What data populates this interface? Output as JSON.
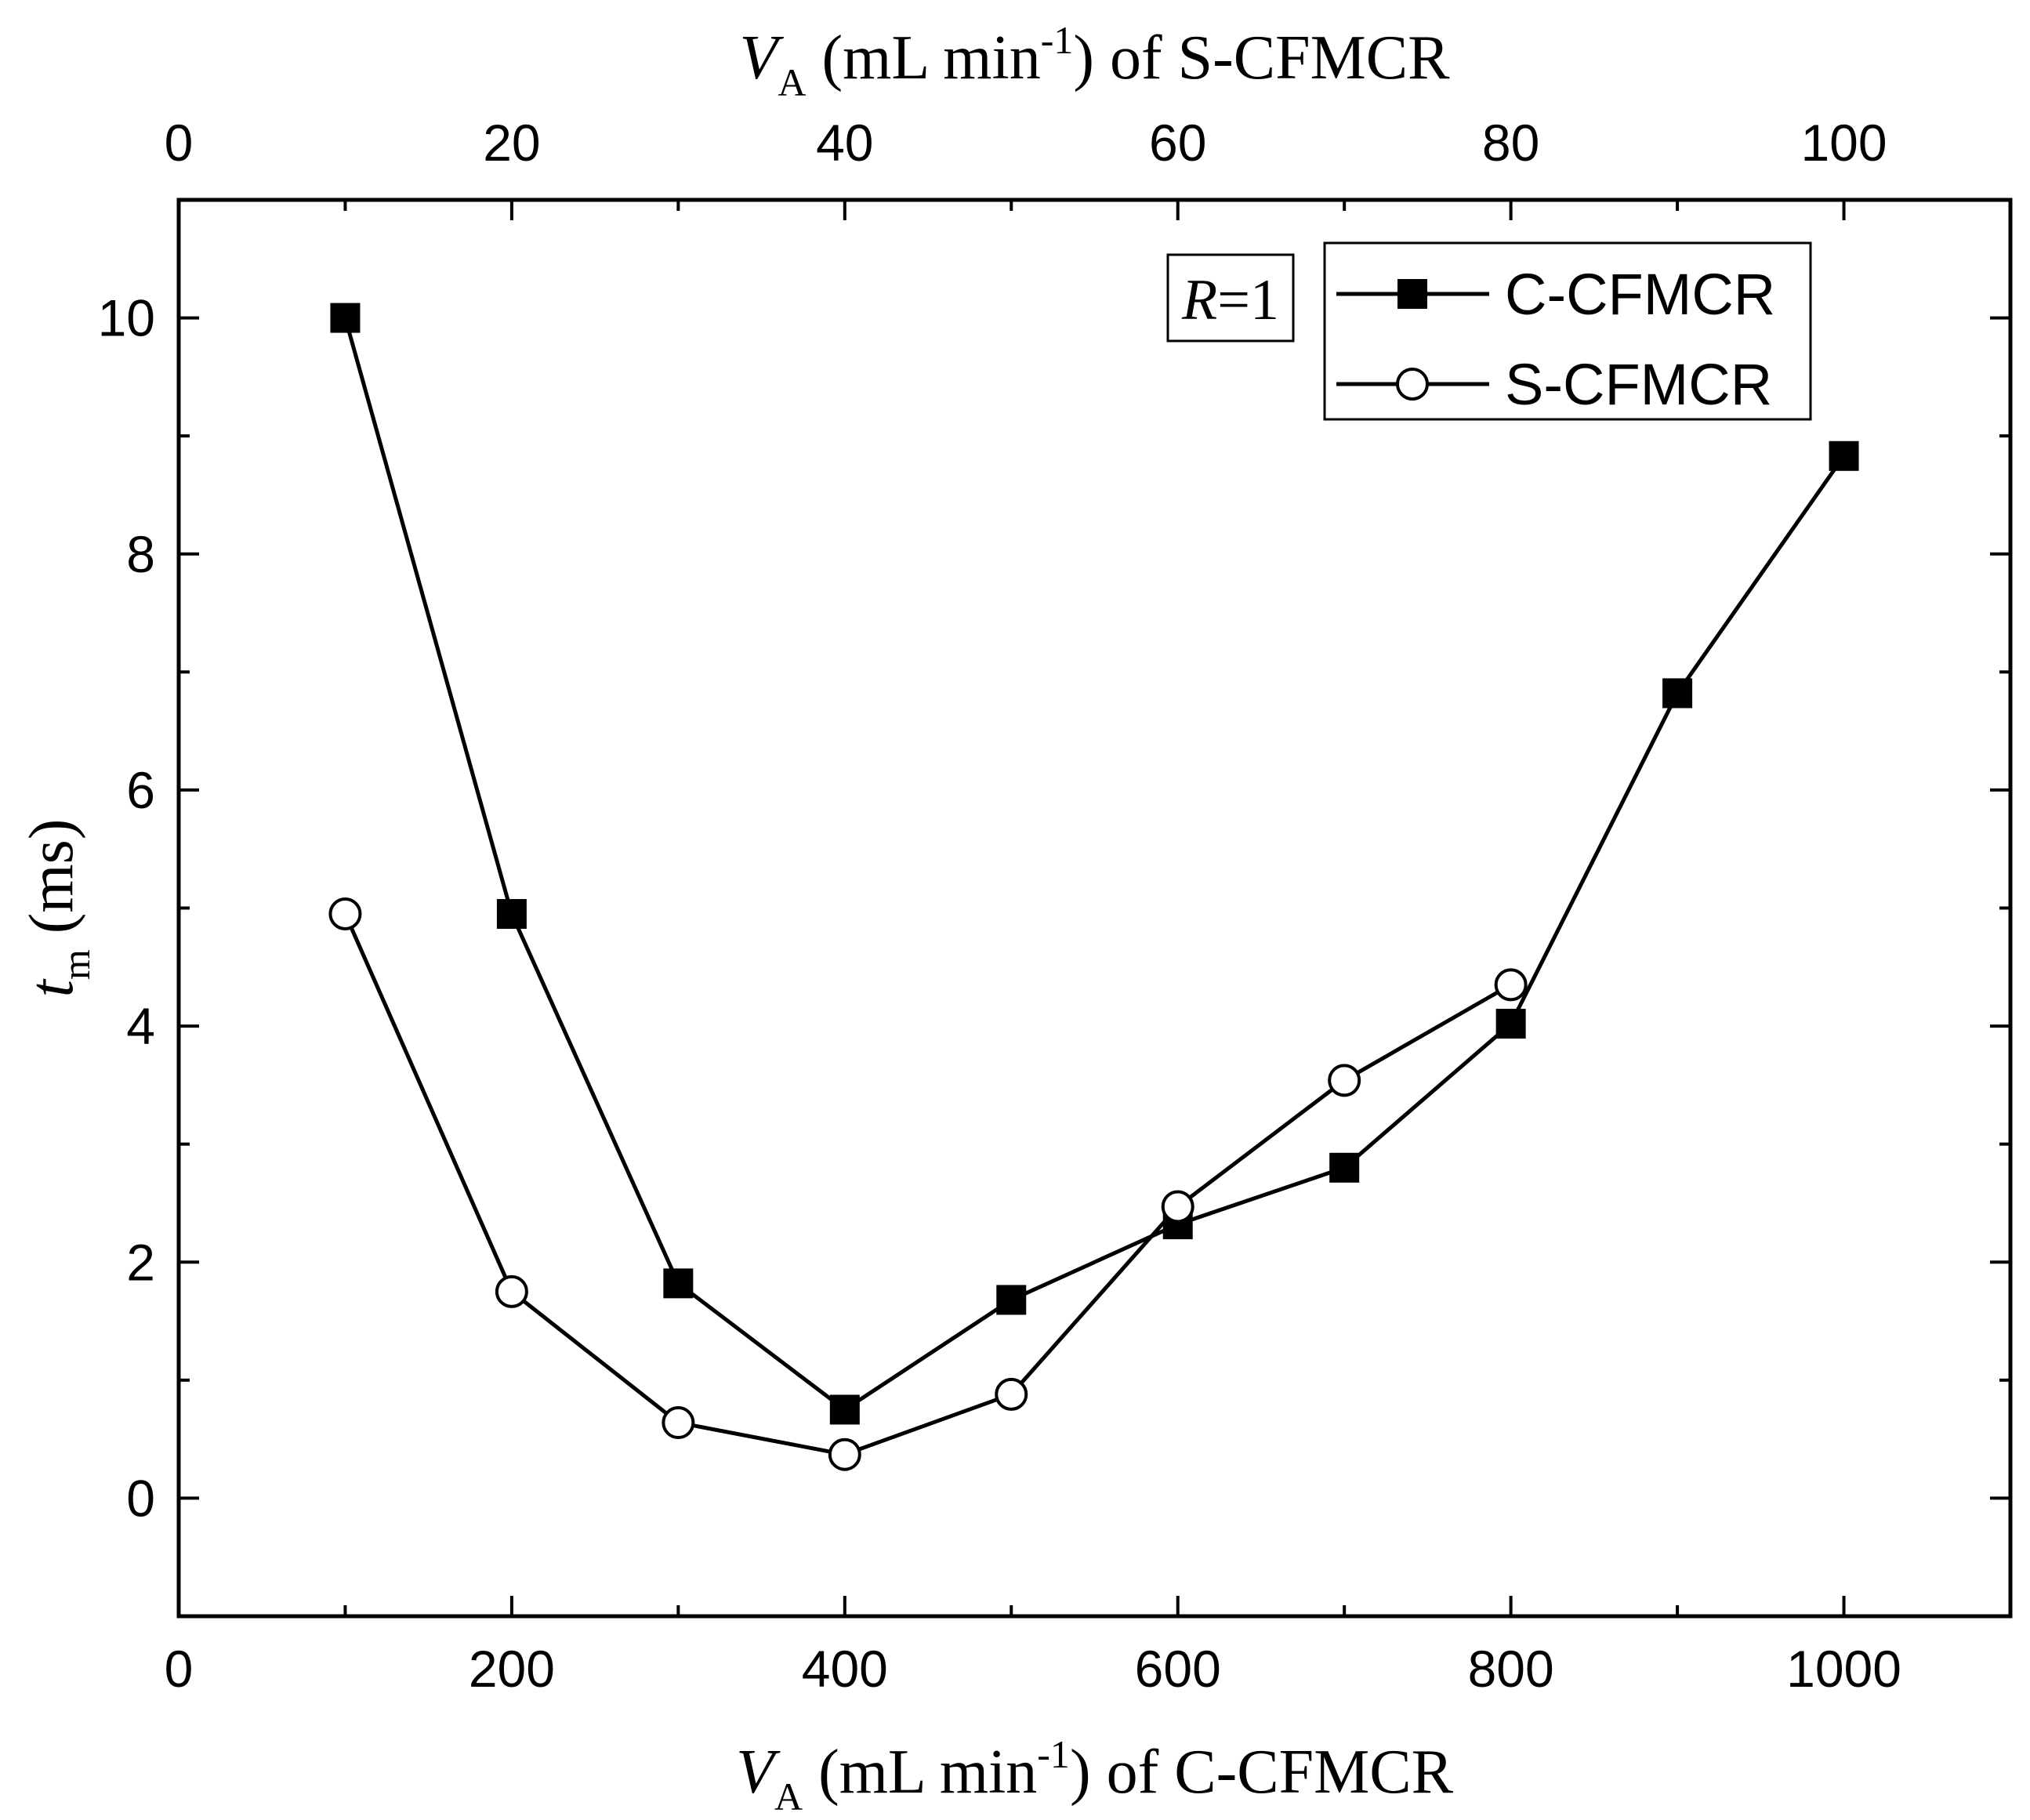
{
  "chart_data": {
    "type": "line",
    "title": "",
    "xlabel": {
      "var": "V",
      "sub": "A",
      "unit_pre": " (mL min",
      "sup": "-1",
      "unit_post": ") of C-CFMCR"
    },
    "x2label": {
      "var": "V",
      "sub": "A",
      "unit_pre": " (mL min",
      "sup": "-1",
      "unit_post": ") of S-CFMCR"
    },
    "ylabel": {
      "var": "t",
      "sub": "m",
      "unit": " (ms)"
    },
    "xlim": [
      0,
      1100
    ],
    "x2lim": [
      0,
      110
    ],
    "ylim": [
      -1,
      11
    ],
    "x_ticks": [
      0,
      200,
      400,
      600,
      800,
      1000
    ],
    "x2_ticks": [
      0,
      20,
      40,
      60,
      80,
      100
    ],
    "y_ticks": [
      0,
      2,
      4,
      6,
      8,
      10
    ],
    "annotation": {
      "var": "R",
      "text": "=1"
    },
    "legend_position": "top-right",
    "series": [
      {
        "name": "C-CFMCR",
        "marker": "filled-square",
        "axis": "bottom",
        "x": [
          100,
          200,
          300,
          400,
          500,
          600,
          700,
          800,
          900,
          1000
        ],
        "y": [
          10.0,
          4.95,
          1.82,
          0.75,
          1.68,
          2.32,
          2.8,
          4.02,
          6.82,
          8.83
        ]
      },
      {
        "name": "S-CFMCR",
        "marker": "open-circle",
        "axis": "top",
        "x": [
          10,
          20,
          30,
          40,
          50,
          60,
          70,
          80
        ],
        "y": [
          4.95,
          1.75,
          0.64,
          0.37,
          0.88,
          2.47,
          3.54,
          4.35
        ]
      }
    ]
  }
}
